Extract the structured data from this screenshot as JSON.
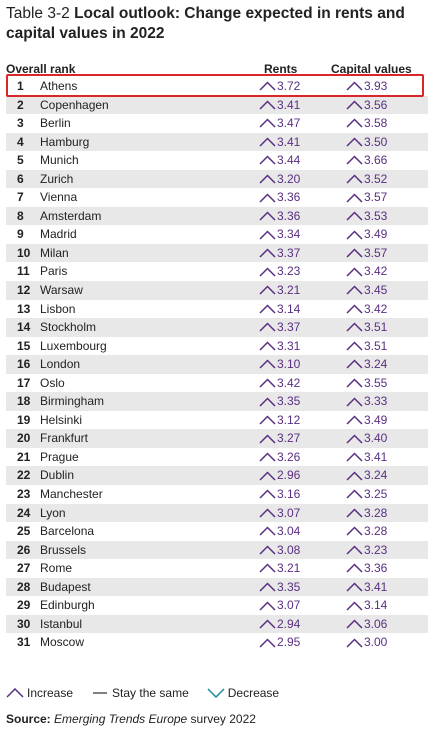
{
  "title": {
    "number": "Table 3-2",
    "text": "Local outlook: Change expected in rents and capital values in 2022"
  },
  "columns": {
    "rank": "Overall rank",
    "rents": "Rents",
    "capital": "Capital values"
  },
  "rows": [
    {
      "rank": "1",
      "city": "Athens",
      "rents": "3.72",
      "capital": "3.93"
    },
    {
      "rank": "2",
      "city": "Copenhagen",
      "rents": "3.41",
      "capital": "3.56"
    },
    {
      "rank": "3",
      "city": "Berlin",
      "rents": "3.47",
      "capital": "3.58"
    },
    {
      "rank": "4",
      "city": "Hamburg",
      "rents": "3.41",
      "capital": "3.50"
    },
    {
      "rank": "5",
      "city": "Munich",
      "rents": "3.44",
      "capital": "3.66"
    },
    {
      "rank": "6",
      "city": "Zurich",
      "rents": "3.20",
      "capital": "3.52"
    },
    {
      "rank": "7",
      "city": "Vienna",
      "rents": "3.36",
      "capital": "3.57"
    },
    {
      "rank": "8",
      "city": "Amsterdam",
      "rents": "3.36",
      "capital": "3.53"
    },
    {
      "rank": "9",
      "city": "Madrid",
      "rents": "3.34",
      "capital": "3.49"
    },
    {
      "rank": "10",
      "city": "Milan",
      "rents": "3.37",
      "capital": "3.57"
    },
    {
      "rank": "11",
      "city": "Paris",
      "rents": "3.23",
      "capital": "3.42"
    },
    {
      "rank": "12",
      "city": "Warsaw",
      "rents": "3.21",
      "capital": "3.45"
    },
    {
      "rank": "13",
      "city": "Lisbon",
      "rents": "3.14",
      "capital": "3.42"
    },
    {
      "rank": "14",
      "city": "Stockholm",
      "rents": "3.37",
      "capital": "3.51"
    },
    {
      "rank": "15",
      "city": "Luxembourg",
      "rents": "3.31",
      "capital": "3.51"
    },
    {
      "rank": "16",
      "city": "London",
      "rents": "3.10",
      "capital": "3.24"
    },
    {
      "rank": "17",
      "city": "Oslo",
      "rents": "3.42",
      "capital": "3.55"
    },
    {
      "rank": "18",
      "city": "Birmingham",
      "rents": "3.35",
      "capital": "3.33"
    },
    {
      "rank": "19",
      "city": "Helsinki",
      "rents": "3.12",
      "capital": "3.49"
    },
    {
      "rank": "20",
      "city": "Frankfurt",
      "rents": "3.27",
      "capital": "3.40"
    },
    {
      "rank": "21",
      "city": "Prague",
      "rents": "3.26",
      "capital": "3.41"
    },
    {
      "rank": "22",
      "city": "Dublin",
      "rents": "2.96",
      "capital": "3.24"
    },
    {
      "rank": "23",
      "city": "Manchester",
      "rents": "3.16",
      "capital": "3.25"
    },
    {
      "rank": "24",
      "city": "Lyon",
      "rents": "3.07",
      "capital": "3.28"
    },
    {
      "rank": "25",
      "city": "Barcelona",
      "rents": "3.04",
      "capital": "3.28"
    },
    {
      "rank": "26",
      "city": "Brussels",
      "rents": "3.08",
      "capital": "3.23"
    },
    {
      "rank": "27",
      "city": "Rome",
      "rents": "3.21",
      "capital": "3.36"
    },
    {
      "rank": "28",
      "city": "Budapest",
      "rents": "3.35",
      "capital": "3.41"
    },
    {
      "rank": "29",
      "city": "Edinburgh",
      "rents": "3.07",
      "capital": "3.14"
    },
    {
      "rank": "30",
      "city": "Istanbul",
      "rents": "2.94",
      "capital": "3.06"
    },
    {
      "rank": "31",
      "city": "Moscow",
      "rents": "2.95",
      "capital": "3.00"
    }
  ],
  "legend": {
    "increase": "Increase",
    "same": "Stay the same",
    "decrease": "Decrease"
  },
  "source": {
    "label": "Source:",
    "italic": "Emerging Trends Europe",
    "rest": " survey 2022"
  },
  "colors": {
    "value": "#5a2f82",
    "shade": "#e8e8e8",
    "highlight": "#d9262a",
    "decrease_arrow": "#1a8a9a"
  }
}
